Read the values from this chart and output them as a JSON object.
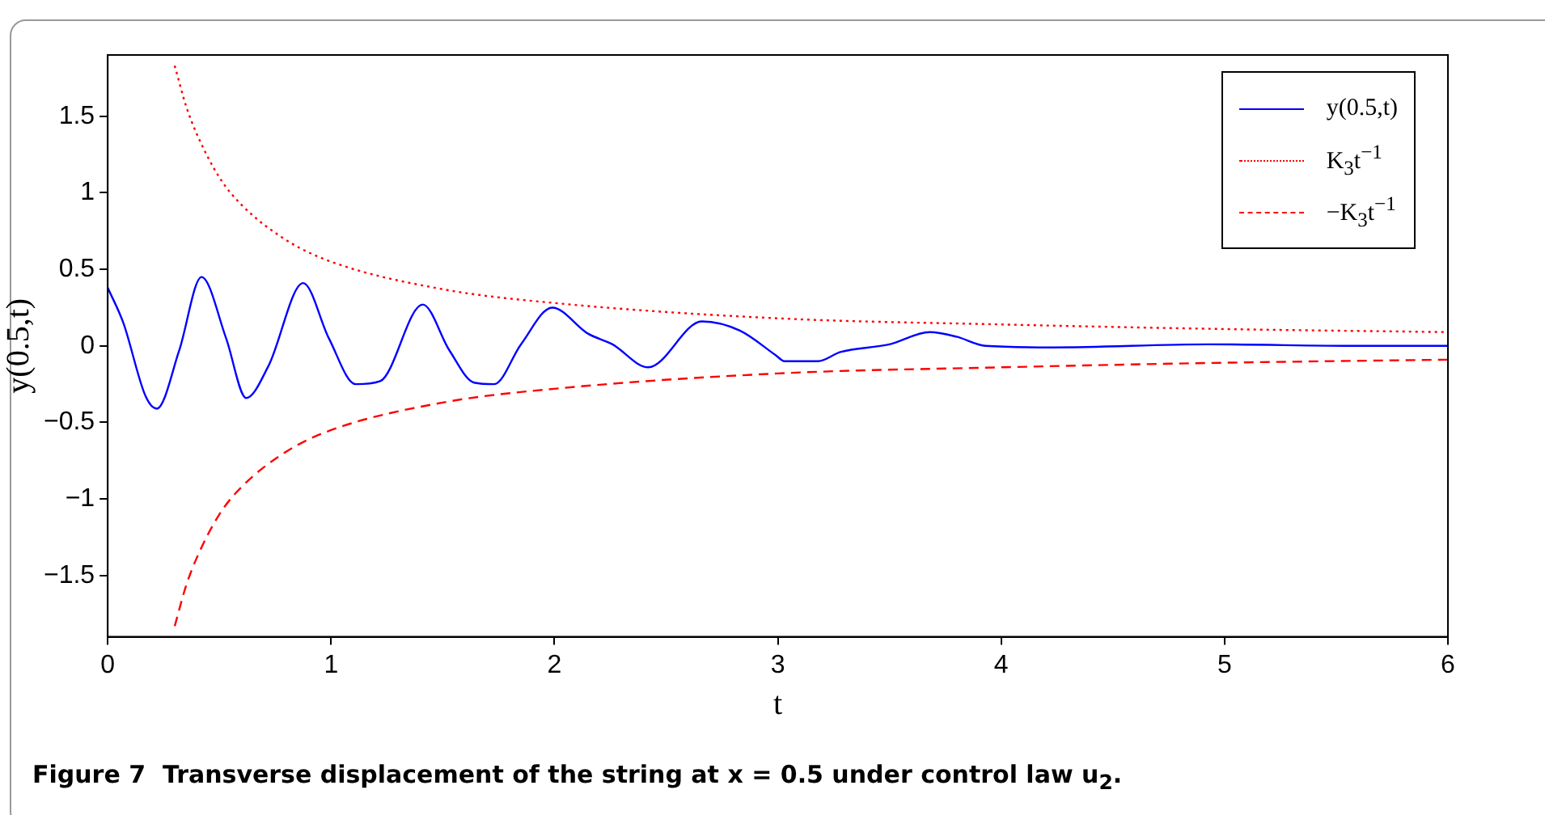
{
  "chart_data": {
    "type": "line",
    "xlabel": "t",
    "ylabel": "y(0.5,t)",
    "xlim": [
      0,
      6
    ],
    "xticks": [
      0,
      1,
      2,
      3,
      4,
      5,
      6
    ],
    "ylim": [
      -1.9,
      1.9
    ],
    "yticks": [
      {
        "value": -1.5,
        "label": "−1.5"
      },
      {
        "value": -1,
        "label": "−1"
      },
      {
        "value": -0.5,
        "label": "−0.5"
      },
      0,
      0.5,
      1,
      1.5
    ],
    "grid": false,
    "legend": "top right",
    "marker": "none",
    "series": [
      {
        "name": "y(0.5,t)",
        "color": "#0000ff",
        "line_style": "solid",
        "x": [
          0,
          0.07,
          0.17,
          0.22,
          0.32,
          0.42,
          0.53,
          0.62,
          0.72,
          0.875,
          0.99,
          1.11,
          1.22,
          1.41,
          1.53,
          1.64,
          1.73,
          1.85,
          1.99,
          2.15,
          2.26,
          2.42,
          2.66,
          2.83,
          2.99,
          3.03,
          3.18,
          3.28,
          3.5,
          3.68,
          3.8,
          3.93,
          4.23,
          4.93,
          5.6,
          6
        ],
        "values": [
          0.38,
          0.15,
          -0.33,
          -0.41,
          -0.03,
          0.45,
          0.05,
          -0.34,
          -0.13,
          0.41,
          0.05,
          -0.25,
          -0.23,
          0.27,
          -0.03,
          -0.24,
          -0.25,
          0.01,
          0.25,
          0.08,
          0.01,
          -0.14,
          0.16,
          0.1,
          -0.06,
          -0.1,
          -0.1,
          -0.04,
          0.01,
          0.09,
          0.06,
          0,
          -0.01,
          0.01,
          0,
          0
        ]
      },
      {
        "name": "K$_{3}$t$^{−1}$",
        "color": "#ff0000",
        "line_style": "dotted",
        "x": [
          0.3,
          0.35,
          0.4,
          0.5,
          0.6,
          0.8,
          1,
          1.5,
          2,
          3,
          4,
          5,
          6
        ],
        "values": [
          1.83,
          1.57,
          1.38,
          1.1,
          0.92,
          0.69,
          0.55,
          0.37,
          0.28,
          0.18,
          0.14,
          0.11,
          0.09
        ]
      },
      {
        "name": "−K$_{3}$t$^{−1}$",
        "color": "#ff0000",
        "line_style": "dashed",
        "x": [
          0.3,
          0.35,
          0.4,
          0.5,
          0.6,
          0.8,
          1,
          1.5,
          2,
          3,
          4,
          5,
          6
        ],
        "values": [
          -1.83,
          -1.57,
          -1.38,
          -1.1,
          -0.92,
          -0.69,
          -0.55,
          -0.37,
          -0.28,
          -0.18,
          -0.14,
          -0.11,
          -0.09
        ]
      }
    ],
    "annotations": [
      "Figure 7  Transverse displacement of the string at x = 0.5 under control law u$_{2}$."
    ]
  }
}
